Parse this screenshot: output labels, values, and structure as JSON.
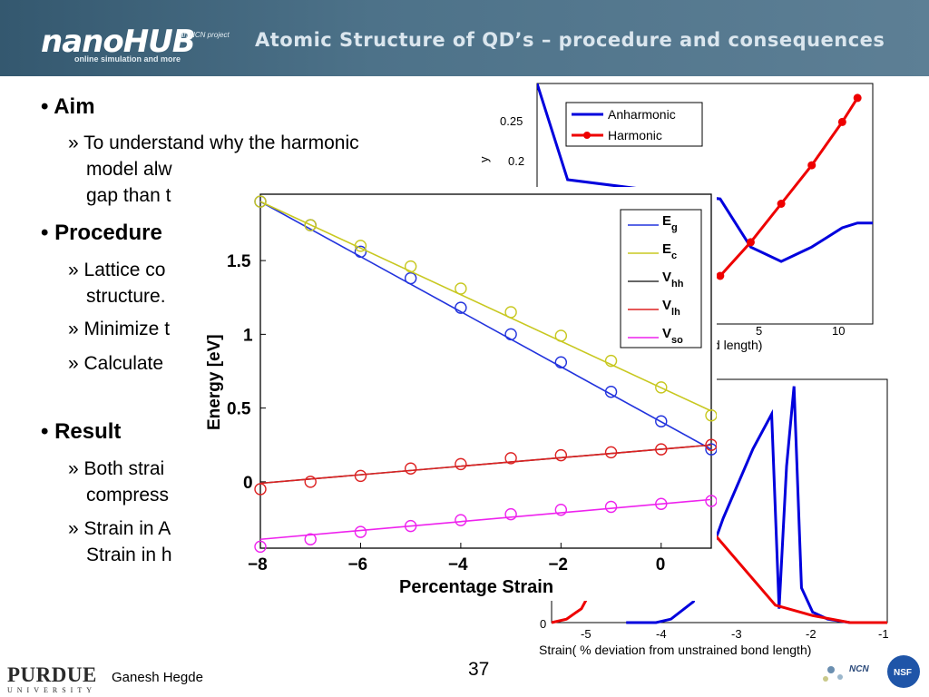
{
  "header": {
    "logo": "nanoHUB",
    "logo_tagline": "online simulation and more",
    "ncn_project": "an NCN project",
    "title": "Atomic Structure of QD’s – procedure and consequences"
  },
  "bullets": [
    {
      "text": "Aim",
      "subs": [
        "To understand why the harmonic",
        "model alw",
        "gap than t"
      ]
    },
    {
      "text": "Procedure",
      "subs": [
        "Lattice co",
        "structure.",
        "Minimize t",
        "Calculate"
      ]
    },
    {
      "text": "Result",
      "subs": [
        "Both strai",
        "compress",
        "Strain in A",
        "Strain in h"
      ]
    }
  ],
  "footer": {
    "presenter": "Ganesh Hegde",
    "page_number": "37",
    "purdue": "PURDUE",
    "purdue_sub": "UNIVERSITY",
    "ncn": "NCN",
    "nsf": "NSF"
  },
  "chart_data": [
    {
      "type": "line",
      "title": "",
      "xlabel": "Strain( % deviation from unstrained bond length)",
      "ylabel": "y",
      "x_ticks": [
        "5",
        "10"
      ],
      "y_ticks": [
        "0.25",
        "0.2"
      ],
      "legend": {
        "placement": "top-left",
        "entries": [
          "Anharmonic",
          "Harmonic"
        ]
      },
      "series": [
        {
          "name": "Anharmonic",
          "color": "#0000dd",
          "x": [
            -10,
            -8,
            2,
            4,
            6,
            8,
            9,
            10,
            11,
            12
          ],
          "y": [
            0.3,
            0.2,
            0.18,
            0.13,
            0.115,
            0.13,
            0.14,
            0.15,
            0.155,
            0.155
          ]
        },
        {
          "name": "Harmonic",
          "color": "#ee0000",
          "x": [
            2,
            4,
            6,
            8,
            10,
            11
          ],
          "y": [
            0.1,
            0.135,
            0.175,
            0.215,
            0.26,
            0.285
          ]
        }
      ]
    },
    {
      "type": "line",
      "title": "",
      "xlabel": "Strain( % deviation from unstrained bond length)",
      "ylabel": "",
      "x_ticks": [
        "-5",
        "-4",
        "-3",
        "-2",
        "-1"
      ],
      "y_ticks": [
        "0"
      ],
      "xlim": [
        -5.5,
        -1
      ],
      "series": [
        {
          "name": "",
          "color": "#0000dd",
          "x": [
            -4.5,
            -4.3,
            -4.1,
            -3.9,
            -3.6,
            -3.4,
            -3.2,
            -3.0,
            -2.8,
            -2.55,
            -2.45,
            -2.35,
            -2.25,
            -2.15,
            -2.0,
            -1.8,
            -1.5,
            -1.2,
            -1.0
          ],
          "y": [
            0,
            0,
            0,
            0.01,
            0.06,
            0.18,
            0.3,
            0.4,
            0.5,
            0.6,
            0.04,
            0.45,
            0.68,
            0.1,
            0.03,
            0.01,
            0,
            0,
            0
          ]
        },
        {
          "name": "",
          "color": "#ee0000",
          "x": [
            -5.5,
            -5.3,
            -5.1,
            -4.9,
            -4.5,
            -4.0,
            -3.5,
            -2.5,
            -2.0,
            -1.5,
            -1.0
          ],
          "y": [
            0,
            0.01,
            0.04,
            0.12,
            0.3,
            0.4,
            0.3,
            0.05,
            0.02,
            0.0,
            0.0
          ]
        }
      ]
    },
    {
      "type": "line",
      "title": "",
      "xlabel": "Percentage Strain",
      "ylabel": "Energy [eV]",
      "xlim": [
        -8,
        1
      ],
      "ylim": [
        -0.45,
        1.95
      ],
      "x_ticks": [
        -8,
        -6,
        -4,
        -2,
        0
      ],
      "y_ticks": [
        0,
        0.5,
        1,
        1.5
      ],
      "legend": {
        "placement": "top-right",
        "entries": [
          "Eg",
          "Ec",
          "Vhh",
          "Vlh",
          "Vso"
        ]
      },
      "series": [
        {
          "name": "Eg",
          "color": "#2233dd",
          "line": [
            [
              -8,
              1.9
            ],
            [
              1,
              0.22
            ]
          ],
          "markers_x": [
            -8,
            -7,
            -6,
            -5,
            -4,
            -3,
            -2,
            -1,
            0,
            1
          ],
          "markers_y": [
            1.9,
            1.74,
            1.56,
            1.38,
            1.18,
            1.0,
            0.81,
            0.61,
            0.41,
            0.22
          ]
        },
        {
          "name": "Ec",
          "color": "#c8c820",
          "line": [
            [
              -8,
              1.9
            ],
            [
              1,
              0.48
            ]
          ],
          "markers_x": [
            -8,
            -7,
            -6,
            -5,
            -4,
            -3,
            -2,
            -1,
            0,
            1
          ],
          "markers_y": [
            1.9,
            1.74,
            1.6,
            1.46,
            1.31,
            1.15,
            0.99,
            0.82,
            0.64,
            0.45
          ]
        },
        {
          "name": "Vhh",
          "color": "#333333",
          "line": [
            [
              -8,
              -0.01
            ],
            [
              1,
              0.25
            ]
          ],
          "markers_x": [],
          "markers_y": []
        },
        {
          "name": "Vlh",
          "color": "#dd2222",
          "line": [
            [
              -8,
              -0.01
            ],
            [
              1,
              0.25
            ]
          ],
          "markers_x": [
            -8,
            -7,
            -6,
            -5,
            -4,
            -3,
            -2,
            -1,
            0,
            1
          ],
          "markers_y": [
            -0.05,
            0.0,
            0.04,
            0.09,
            0.12,
            0.16,
            0.18,
            0.2,
            0.22,
            0.25
          ]
        },
        {
          "name": "Vso",
          "color": "#ee22ee",
          "line": [
            [
              -8,
              -0.39
            ],
            [
              1,
              -0.12
            ]
          ],
          "markers_x": [
            -8,
            -7,
            -6,
            -5,
            -4,
            -3,
            -2,
            -1,
            0,
            1
          ],
          "markers_y": [
            -0.44,
            -0.39,
            -0.34,
            -0.3,
            -0.26,
            -0.22,
            -0.19,
            -0.17,
            -0.15,
            -0.13
          ]
        }
      ]
    }
  ]
}
